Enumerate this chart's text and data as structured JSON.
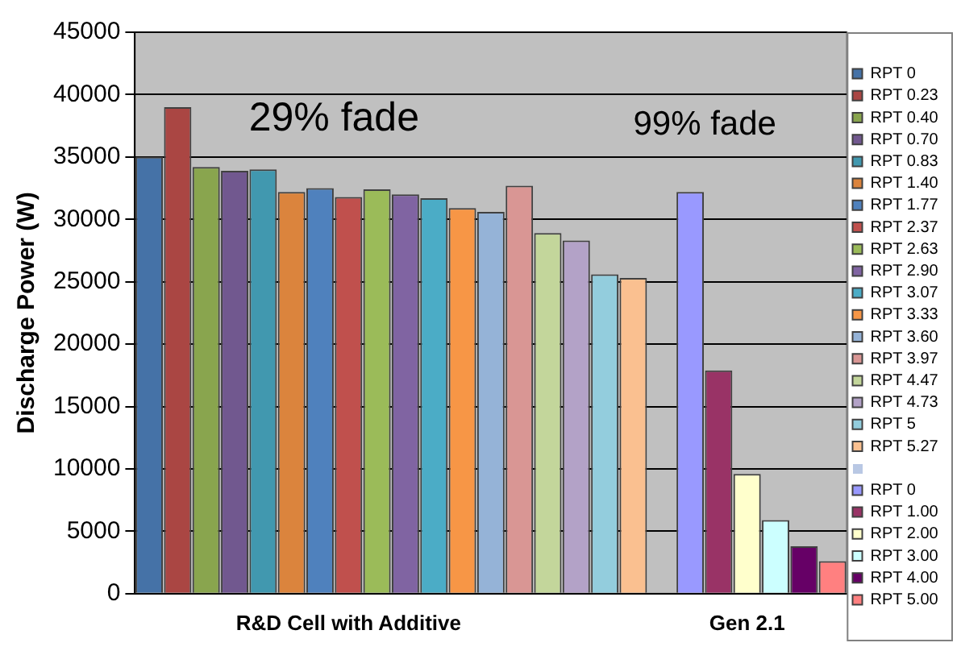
{
  "chart_data": {
    "type": "bar",
    "ylabel": "Discharge Power (W)",
    "categories": [
      null,
      null,
      null,
      null,
      null,
      null,
      null,
      "R&D Cell with Additive",
      null,
      null,
      null,
      null,
      null,
      null,
      null,
      null,
      null,
      null,
      null,
      null,
      null,
      "Gen 2.1",
      null,
      null,
      null
    ],
    "ylim": [
      0,
      45000
    ],
    "yticks": [
      0,
      5000,
      10000,
      15000,
      20000,
      25000,
      30000,
      35000,
      40000,
      45000
    ],
    "grid": "y",
    "legend": "right",
    "annotations": [
      "29% fade",
      "99% fade"
    ],
    "series": [
      {
        "name": "RPT 0",
        "color": "#4572a7",
        "values": [
          35000,
          null,
          null,
          null,
          null,
          null,
          null,
          null,
          null,
          null,
          null,
          null,
          null,
          null,
          null,
          null,
          null,
          null,
          null,
          null,
          null,
          null,
          null,
          null,
          null
        ]
      },
      {
        "name": "RPT 0.23",
        "color": "#aa4643",
        "values": [
          null,
          39000,
          null,
          null,
          null,
          null,
          null,
          null,
          null,
          null,
          null,
          null,
          null,
          null,
          null,
          null,
          null,
          null,
          null,
          null,
          null,
          null,
          null,
          null,
          null
        ]
      },
      {
        "name": "RPT 0.40",
        "color": "#89a54e",
        "values": [
          null,
          null,
          34200,
          null,
          null,
          null,
          null,
          null,
          null,
          null,
          null,
          null,
          null,
          null,
          null,
          null,
          null,
          null,
          null,
          null,
          null,
          null,
          null,
          null,
          null
        ]
      },
      {
        "name": "RPT 0.70",
        "color": "#71588f",
        "values": [
          null,
          null,
          null,
          33900,
          null,
          null,
          null,
          null,
          null,
          null,
          null,
          null,
          null,
          null,
          null,
          null,
          null,
          null,
          null,
          null,
          null,
          null,
          null,
          null,
          null
        ]
      },
      {
        "name": "RPT 0.83",
        "color": "#4198af",
        "values": [
          null,
          null,
          null,
          null,
          34000,
          null,
          null,
          null,
          null,
          null,
          null,
          null,
          null,
          null,
          null,
          null,
          null,
          null,
          null,
          null,
          null,
          null,
          null,
          null,
          null
        ]
      },
      {
        "name": "RPT 1.40",
        "color": "#db843d",
        "values": [
          null,
          null,
          null,
          null,
          null,
          32200,
          null,
          null,
          null,
          null,
          null,
          null,
          null,
          null,
          null,
          null,
          null,
          null,
          null,
          null,
          null,
          null,
          null,
          null,
          null
        ]
      },
      {
        "name": "RPT 1.77",
        "color": "#4f81bd",
        "values": [
          null,
          null,
          null,
          null,
          null,
          null,
          32500,
          null,
          null,
          null,
          null,
          null,
          null,
          null,
          null,
          null,
          null,
          null,
          null,
          null,
          null,
          null,
          null,
          null,
          null
        ]
      },
      {
        "name": "RPT 2.37",
        "color": "#c0504d",
        "values": [
          null,
          null,
          null,
          null,
          null,
          null,
          null,
          31800,
          null,
          null,
          null,
          null,
          null,
          null,
          null,
          null,
          null,
          null,
          null,
          null,
          null,
          null,
          null,
          null,
          null
        ]
      },
      {
        "name": "RPT 2.63",
        "color": "#9bbb59",
        "values": [
          null,
          null,
          null,
          null,
          null,
          null,
          null,
          null,
          32400,
          null,
          null,
          null,
          null,
          null,
          null,
          null,
          null,
          null,
          null,
          null,
          null,
          null,
          null,
          null,
          null
        ]
      },
      {
        "name": "RPT 2.90",
        "color": "#8064a2",
        "values": [
          null,
          null,
          null,
          null,
          null,
          null,
          null,
          null,
          null,
          32000,
          null,
          null,
          null,
          null,
          null,
          null,
          null,
          null,
          null,
          null,
          null,
          null,
          null,
          null,
          null
        ]
      },
      {
        "name": "RPT 3.07",
        "color": "#4bacc6",
        "values": [
          null,
          null,
          null,
          null,
          null,
          null,
          null,
          null,
          null,
          null,
          31700,
          null,
          null,
          null,
          null,
          null,
          null,
          null,
          null,
          null,
          null,
          null,
          null,
          null,
          null
        ]
      },
      {
        "name": "RPT 3.33",
        "color": "#f79646",
        "values": [
          null,
          null,
          null,
          null,
          null,
          null,
          null,
          null,
          null,
          null,
          null,
          30900,
          null,
          null,
          null,
          null,
          null,
          null,
          null,
          null,
          null,
          null,
          null,
          null,
          null
        ]
      },
      {
        "name": "RPT 3.60",
        "color": "#95b3d7",
        "values": [
          null,
          null,
          null,
          null,
          null,
          null,
          null,
          null,
          null,
          null,
          null,
          null,
          30600,
          null,
          null,
          null,
          null,
          null,
          null,
          null,
          null,
          null,
          null,
          null,
          null
        ]
      },
      {
        "name": "RPT 3.97",
        "color": "#d99694",
        "values": [
          null,
          null,
          null,
          null,
          null,
          null,
          null,
          null,
          null,
          null,
          null,
          null,
          null,
          32700,
          null,
          null,
          null,
          null,
          null,
          null,
          null,
          null,
          null,
          null,
          null
        ]
      },
      {
        "name": "RPT 4.47",
        "color": "#c3d69b",
        "values": [
          null,
          null,
          null,
          null,
          null,
          null,
          null,
          null,
          null,
          null,
          null,
          null,
          null,
          null,
          28900,
          null,
          null,
          null,
          null,
          null,
          null,
          null,
          null,
          null,
          null
        ]
      },
      {
        "name": "RPT 4.73",
        "color": "#b3a2c7",
        "values": [
          null,
          null,
          null,
          null,
          null,
          null,
          null,
          null,
          null,
          null,
          null,
          null,
          null,
          null,
          null,
          28300,
          null,
          null,
          null,
          null,
          null,
          null,
          null,
          null,
          null
        ]
      },
      {
        "name": "RPT 5",
        "color": "#93cddd",
        "values": [
          null,
          null,
          null,
          null,
          null,
          null,
          null,
          null,
          null,
          null,
          null,
          null,
          null,
          null,
          null,
          null,
          25600,
          null,
          null,
          null,
          null,
          null,
          null,
          null,
          null
        ]
      },
      {
        "name": "RPT 5.27",
        "color": "#fac090",
        "values": [
          null,
          null,
          null,
          null,
          null,
          null,
          null,
          null,
          null,
          null,
          null,
          null,
          null,
          null,
          null,
          null,
          null,
          25300,
          null,
          null,
          null,
          null,
          null,
          null,
          null
        ]
      },
      {
        "color": "#b9c8e4",
        "values": [
          null,
          null,
          null,
          null,
          null,
          null,
          null,
          null,
          null,
          null,
          null,
          null,
          null,
          null,
          null,
          null,
          null,
          null,
          0,
          null,
          null,
          null,
          null,
          null,
          null
        ]
      },
      {
        "name": "RPT 0",
        "color": "#9999ff",
        "values": [
          null,
          null,
          null,
          null,
          null,
          null,
          null,
          null,
          null,
          null,
          null,
          null,
          null,
          null,
          null,
          null,
          null,
          null,
          null,
          32200,
          null,
          null,
          null,
          null,
          null
        ]
      },
      {
        "name": "RPT 1.00",
        "color": "#993366",
        "values": [
          null,
          null,
          null,
          null,
          null,
          null,
          null,
          null,
          null,
          null,
          null,
          null,
          null,
          null,
          null,
          null,
          null,
          null,
          null,
          null,
          17900,
          null,
          null,
          null,
          null
        ]
      },
      {
        "name": "RPT 2.00",
        "color": "#ffffcc",
        "values": [
          null,
          null,
          null,
          null,
          null,
          null,
          null,
          null,
          null,
          null,
          null,
          null,
          null,
          null,
          null,
          null,
          null,
          null,
          null,
          null,
          null,
          9600,
          null,
          null,
          null
        ]
      },
      {
        "name": "RPT 3.00",
        "color": "#ccffff",
        "values": [
          null,
          null,
          null,
          null,
          null,
          null,
          null,
          null,
          null,
          null,
          null,
          null,
          null,
          null,
          null,
          null,
          null,
          null,
          null,
          null,
          null,
          null,
          5900,
          null,
          null
        ]
      },
      {
        "name": "RPT 4.00",
        "color": "#660066",
        "values": [
          null,
          null,
          null,
          null,
          null,
          null,
          null,
          null,
          null,
          null,
          null,
          null,
          null,
          null,
          null,
          null,
          null,
          null,
          null,
          null,
          null,
          null,
          null,
          3800,
          null
        ]
      },
      {
        "name": "RPT 5.00",
        "color": "#ff8080",
        "values": [
          null,
          null,
          null,
          null,
          null,
          null,
          null,
          null,
          null,
          null,
          null,
          null,
          null,
          null,
          null,
          null,
          null,
          null,
          null,
          null,
          null,
          null,
          null,
          null,
          2600
        ]
      }
    ]
  }
}
